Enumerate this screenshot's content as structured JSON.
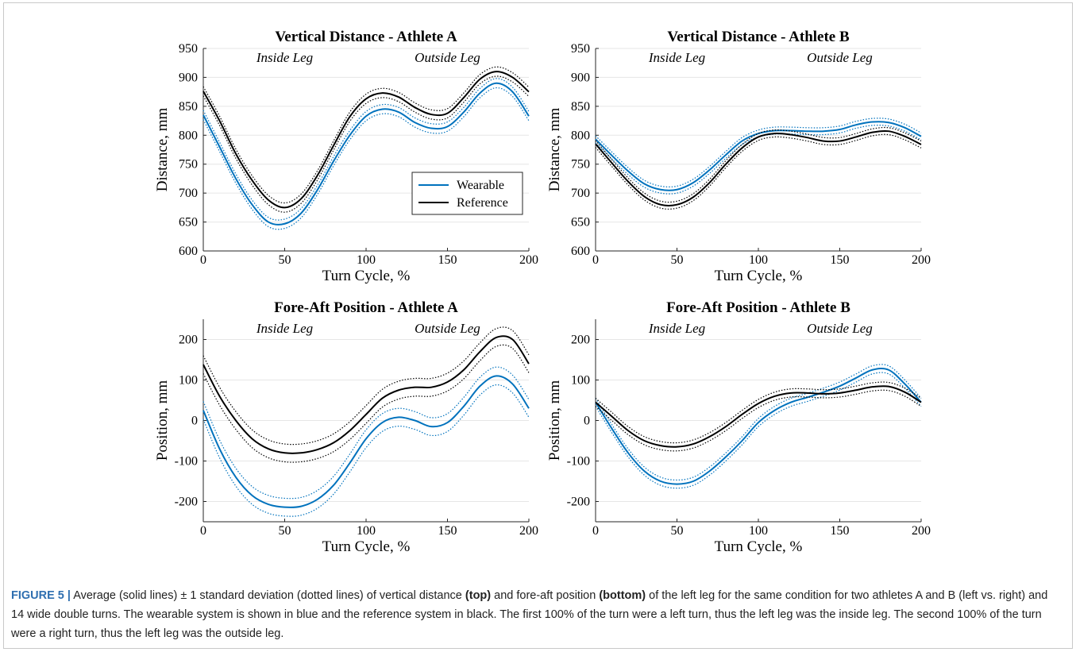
{
  "colors": {
    "wearable": "#0072BD",
    "reference": "#000000",
    "grid": "#e6e6e6",
    "caption_label": "#2f6fb0"
  },
  "caption": {
    "label": "FIGURE 5 |",
    "t1": " Average (solid lines) ± 1 standard deviation (dotted lines) of vertical distance ",
    "b1": "(top)",
    "t2": " and fore-aft position ",
    "b2": "(bottom)",
    "t3": " of the left leg for the same condition for two athletes A and B (left vs. right) and 14 wide double turns. The wearable system is shown in blue and the reference system in black. The first 100% of the turn were a left turn, thus the left leg was the inside leg. The second 100% of the turn were a right turn, thus the left leg was the outside leg."
  },
  "chart_data": [
    {
      "type": "line",
      "title": "Vertical Distance - Athlete A",
      "xlabel": "Turn Cycle, %",
      "ylabel": "Distance, mm",
      "xlim": [
        0,
        200
      ],
      "ylim": [
        600,
        950
      ],
      "xticks": [
        0,
        50,
        100,
        150,
        200
      ],
      "yticks": [
        600,
        650,
        700,
        750,
        800,
        850,
        900,
        950
      ],
      "annotations": [
        {
          "text": "Inside Leg",
          "x": 50
        },
        {
          "text": "Outside Leg",
          "x": 150
        }
      ],
      "grid": "horizontal",
      "legend": {
        "position": "inside-middle-right",
        "entries": [
          "Wearable",
          "Reference"
        ]
      },
      "x": [
        0,
        10,
        20,
        30,
        40,
        50,
        60,
        70,
        80,
        90,
        100,
        110,
        120,
        130,
        140,
        150,
        160,
        170,
        180,
        190,
        200
      ],
      "series": [
        {
          "name": "Wearable",
          "sd": 8,
          "values": [
            835,
            780,
            725,
            680,
            650,
            647,
            665,
            705,
            755,
            800,
            833,
            845,
            840,
            822,
            812,
            815,
            840,
            873,
            890,
            875,
            833
          ]
        },
        {
          "name": "Reference",
          "sd": 8,
          "values": [
            876,
            825,
            768,
            722,
            688,
            675,
            690,
            730,
            782,
            832,
            863,
            873,
            866,
            848,
            836,
            838,
            865,
            897,
            910,
            900,
            875
          ]
        }
      ]
    },
    {
      "type": "line",
      "title": "Vertical Distance - Athlete B",
      "xlabel": "Turn Cycle, %",
      "ylabel": "Distance, mm",
      "xlim": [
        0,
        200
      ],
      "ylim": [
        600,
        950
      ],
      "xticks": [
        0,
        50,
        100,
        150,
        200
      ],
      "yticks": [
        600,
        650,
        700,
        750,
        800,
        850,
        900,
        950
      ],
      "annotations": [
        {
          "text": "Inside Leg",
          "x": 50
        },
        {
          "text": "Outside Leg",
          "x": 150
        }
      ],
      "grid": "horizontal",
      "x": [
        0,
        10,
        20,
        30,
        40,
        50,
        60,
        70,
        80,
        90,
        100,
        110,
        120,
        130,
        140,
        150,
        160,
        170,
        180,
        190,
        200
      ],
      "series": [
        {
          "name": "Wearable",
          "sd": 6,
          "values": [
            793,
            765,
            738,
            716,
            706,
            706,
            718,
            740,
            766,
            790,
            803,
            808,
            808,
            807,
            807,
            810,
            818,
            823,
            822,
            813,
            798
          ]
        },
        {
          "name": "Reference",
          "sd": 6,
          "values": [
            785,
            752,
            720,
            694,
            680,
            680,
            693,
            718,
            750,
            778,
            797,
            803,
            801,
            796,
            790,
            790,
            797,
            805,
            807,
            798,
            784
          ]
        }
      ]
    },
    {
      "type": "line",
      "title": "Fore-Aft Position - Athlete A",
      "xlabel": "Turn Cycle, %",
      "ylabel": "Position, mm",
      "xlim": [
        0,
        200
      ],
      "ylim": [
        -250,
        250
      ],
      "xticks": [
        0,
        50,
        100,
        150,
        200
      ],
      "yticks": [
        -200,
        -100,
        0,
        100,
        200
      ],
      "annotations": [
        {
          "text": "Inside Leg",
          "x": 50
        },
        {
          "text": "Outside Leg",
          "x": 150
        }
      ],
      "grid": "horizontal",
      "x": [
        0,
        10,
        20,
        30,
        40,
        50,
        60,
        70,
        80,
        90,
        100,
        110,
        120,
        130,
        140,
        150,
        160,
        170,
        180,
        190,
        200
      ],
      "series": [
        {
          "name": "Wearable",
          "sd": 22,
          "values": [
            25,
            -70,
            -140,
            -185,
            -207,
            -214,
            -212,
            -195,
            -160,
            -105,
            -45,
            -5,
            8,
            0,
            -15,
            -5,
            35,
            85,
            110,
            90,
            30
          ]
        },
        {
          "name": "Reference",
          "sd": 22,
          "values": [
            138,
            60,
            0,
            -45,
            -70,
            -80,
            -80,
            -72,
            -55,
            -25,
            15,
            55,
            75,
            82,
            82,
            95,
            125,
            170,
            205,
            200,
            140
          ]
        }
      ]
    },
    {
      "type": "line",
      "title": "Fore-Aft Position - Athlete B",
      "xlabel": "Turn Cycle, %",
      "ylabel": "Position, mm",
      "xlim": [
        0,
        200
      ],
      "ylim": [
        -250,
        250
      ],
      "xticks": [
        0,
        50,
        100,
        150,
        200
      ],
      "yticks": [
        -200,
        -100,
        0,
        100,
        200
      ],
      "annotations": [
        {
          "text": "Inside Leg",
          "x": 50
        },
        {
          "text": "Outside Leg",
          "x": 150
        }
      ],
      "grid": "horizontal",
      "x": [
        0,
        10,
        20,
        30,
        40,
        50,
        60,
        70,
        80,
        90,
        100,
        110,
        120,
        130,
        140,
        150,
        160,
        170,
        180,
        190,
        200
      ],
      "series": [
        {
          "name": "Wearable",
          "sd": 10,
          "values": [
            45,
            -20,
            -80,
            -125,
            -150,
            -157,
            -150,
            -125,
            -90,
            -50,
            -5,
            25,
            45,
            57,
            70,
            85,
            105,
            125,
            125,
            90,
            45
          ]
        },
        {
          "name": "Reference",
          "sd": 10,
          "values": [
            45,
            10,
            -25,
            -50,
            -62,
            -65,
            -58,
            -40,
            -15,
            15,
            42,
            60,
            68,
            68,
            66,
            68,
            75,
            83,
            84,
            70,
            45
          ]
        }
      ]
    }
  ]
}
